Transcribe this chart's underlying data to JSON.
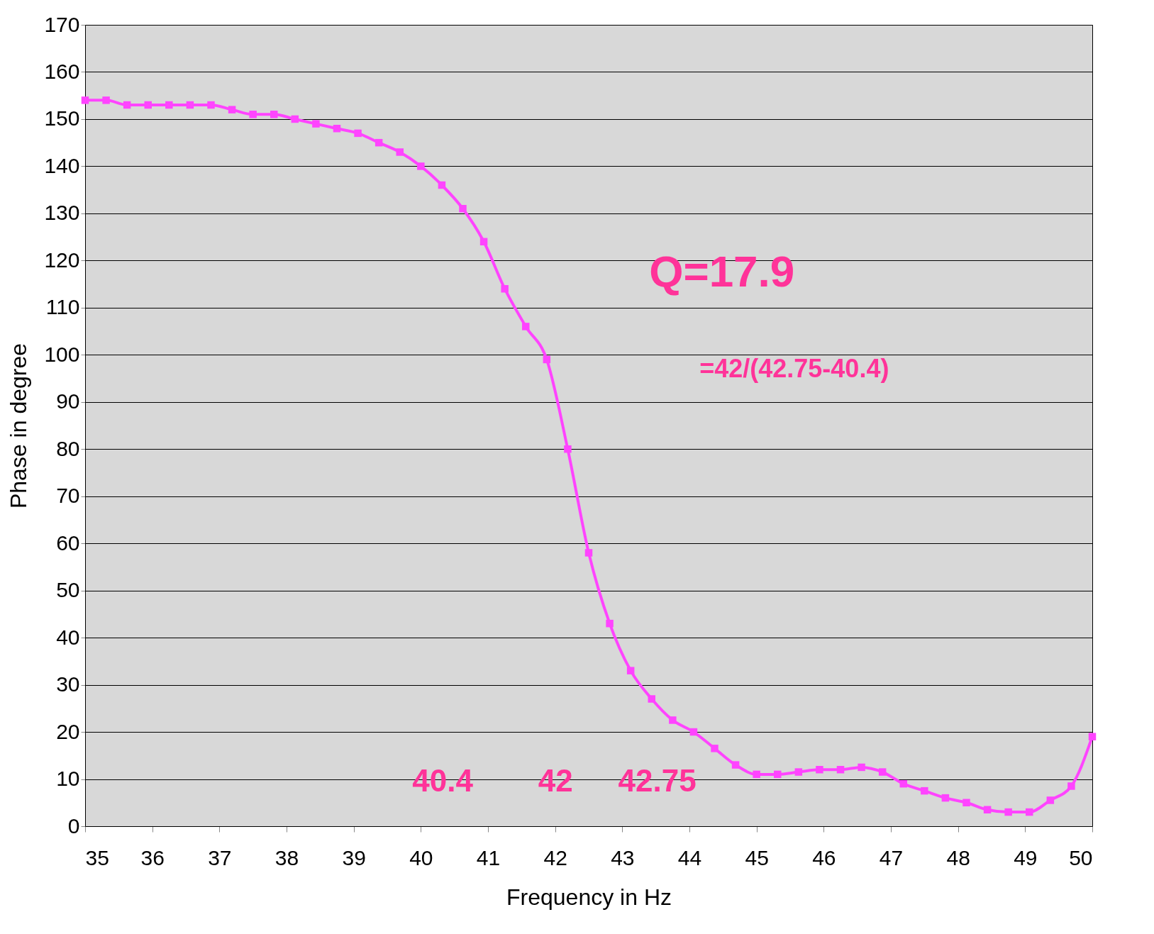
{
  "chart_data": {
    "type": "line",
    "xlabel": "Frequency in Hz",
    "ylabel": "Phase in degree",
    "x": [
      35,
      35.3125,
      35.625,
      35.9375,
      36.25,
      36.5625,
      36.875,
      37.1875,
      37.5,
      37.8125,
      38.125,
      38.4375,
      38.75,
      39.0625,
      39.375,
      39.6875,
      40,
      40.3125,
      40.625,
      40.9375,
      41.25,
      41.5625,
      41.875,
      42.1875,
      42.5,
      42.8125,
      43.125,
      43.4375,
      43.75,
      44.0625,
      44.375,
      44.6875,
      45,
      45.3125,
      45.625,
      45.9375,
      46.25,
      46.5625,
      46.875,
      47.1875,
      47.5,
      47.8125,
      48.125,
      48.4375,
      48.75,
      49.0625,
      49.375,
      49.6875,
      50
    ],
    "series": [
      {
        "color": "#ff44ff",
        "values": [
          154,
          154,
          153,
          153,
          153,
          153,
          153,
          152,
          151,
          151,
          150,
          149,
          148,
          147,
          145,
          143,
          140,
          136,
          131,
          124,
          114,
          106,
          99,
          80,
          58,
          43,
          33,
          27,
          22.5,
          20,
          16.5,
          13,
          11,
          11,
          11.5,
          12,
          12,
          12.5,
          11.5,
          9,
          7.5,
          6,
          5,
          3.5,
          3,
          3,
          5.5,
          8.5,
          19
        ]
      }
    ],
    "xlim": [
      35,
      50
    ],
    "xticks": [
      35,
      36,
      37,
      38,
      39,
      40,
      41,
      42,
      43,
      44,
      45,
      46,
      47,
      48,
      49,
      50
    ],
    "ylim": [
      0,
      170
    ],
    "yticks": [
      0,
      10,
      20,
      30,
      40,
      50,
      60,
      70,
      80,
      90,
      100,
      110,
      120,
      130,
      140,
      150,
      160,
      170
    ],
    "grid": "y",
    "marker": "square",
    "line_style": "solid",
    "annotations": [
      "Q=17.9",
      "=42/(42.75-40.4)",
      "40.4",
      "42",
      "42.75"
    ]
  }
}
